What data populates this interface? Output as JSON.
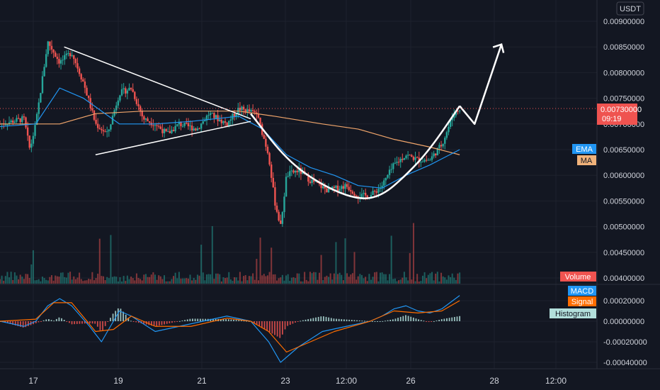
{
  "currency": "USDT",
  "last_price": {
    "value": "0.00730000",
    "countdown": "09:19",
    "color": "#ef5350"
  },
  "price_axis_ticks": [
    "0.00900000",
    "0.00850000",
    "0.00800000",
    "0.00750000",
    "0.00700000",
    "0.00650000",
    "0.00600000",
    "0.00550000",
    "0.00500000",
    "0.00450000",
    "0.00400000"
  ],
  "indicator_badges": {
    "ema": {
      "label": "EMA",
      "color": "#2196f3"
    },
    "ma": {
      "label": "MA",
      "color": "#f0a56b"
    },
    "volume": {
      "label": "Volume",
      "color": "#ef5350"
    }
  },
  "macd_badges": {
    "macd": {
      "label": "MACD",
      "color": "#2196f3"
    },
    "signal": {
      "label": "Signal",
      "color": "#ff6d00"
    },
    "histogram": {
      "label": "Histogram",
      "color": "#b2dfdb"
    }
  },
  "macd_axis_ticks": [
    "0.00020000",
    "0.00000000",
    "-0.00020000",
    "-0.00040000"
  ],
  "time_axis_ticks": [
    "17",
    "19",
    "21",
    "23",
    "12:00",
    "26",
    "28",
    "12:00"
  ],
  "chart_data": {
    "type": "candlestick",
    "x_axis": {
      "ticks": [
        "17",
        "19",
        "21",
        "23",
        "12:00",
        "26",
        "28",
        "12:00"
      ]
    },
    "y_axis": {
      "min": 0.004,
      "max": 0.009,
      "step": 0.0005
    },
    "macd_axis": {
      "min": -0.0004,
      "max": 0.0002,
      "step": 0.0002
    },
    "price_path": [
      [
        0,
        0.007
      ],
      [
        0.04,
        0.0071
      ],
      [
        0.05,
        0.0065
      ],
      [
        0.06,
        0.007
      ],
      [
        0.08,
        0.0086
      ],
      [
        0.1,
        0.0082
      ],
      [
        0.12,
        0.0084
      ],
      [
        0.14,
        0.0078
      ],
      [
        0.16,
        0.007
      ],
      [
        0.17,
        0.0069
      ],
      [
        0.18,
        0.0068
      ],
      [
        0.2,
        0.0076
      ],
      [
        0.22,
        0.0077
      ],
      [
        0.24,
        0.0071
      ],
      [
        0.26,
        0.007
      ],
      [
        0.28,
        0.0068
      ],
      [
        0.3,
        0.007
      ],
      [
        0.33,
        0.0069
      ],
      [
        0.35,
        0.0072
      ],
      [
        0.38,
        0.007
      ],
      [
        0.4,
        0.0073
      ],
      [
        0.43,
        0.0072
      ],
      [
        0.45,
        0.0064
      ],
      [
        0.46,
        0.0055
      ],
      [
        0.47,
        0.005
      ],
      [
        0.48,
        0.006
      ],
      [
        0.5,
        0.0061
      ],
      [
        0.52,
        0.0059
      ],
      [
        0.55,
        0.0057
      ],
      [
        0.58,
        0.0058
      ],
      [
        0.6,
        0.0056
      ],
      [
        0.62,
        0.0056
      ],
      [
        0.64,
        0.0058
      ],
      [
        0.66,
        0.0062
      ],
      [
        0.68,
        0.0064
      ],
      [
        0.7,
        0.0063
      ],
      [
        0.72,
        0.0063
      ],
      [
        0.74,
        0.0066
      ],
      [
        0.76,
        0.0072
      ],
      [
        0.77,
        0.0073
      ]
    ],
    "ema": [
      [
        0,
        0.00695
      ],
      [
        0.06,
        0.007
      ],
      [
        0.1,
        0.0077
      ],
      [
        0.14,
        0.0075
      ],
      [
        0.2,
        0.007
      ],
      [
        0.26,
        0.007
      ],
      [
        0.32,
        0.00705
      ],
      [
        0.4,
        0.00715
      ],
      [
        0.44,
        0.0069
      ],
      [
        0.48,
        0.0064
      ],
      [
        0.52,
        0.00615
      ],
      [
        0.56,
        0.006
      ],
      [
        0.6,
        0.0058
      ],
      [
        0.64,
        0.00575
      ],
      [
        0.68,
        0.006
      ],
      [
        0.72,
        0.0062
      ],
      [
        0.77,
        0.0065
      ]
    ],
    "ma": [
      [
        0,
        0.007
      ],
      [
        0.1,
        0.007
      ],
      [
        0.16,
        0.0072
      ],
      [
        0.24,
        0.00725
      ],
      [
        0.32,
        0.00725
      ],
      [
        0.4,
        0.00725
      ],
      [
        0.46,
        0.00715
      ],
      [
        0.54,
        0.007
      ],
      [
        0.6,
        0.0069
      ],
      [
        0.66,
        0.0067
      ],
      [
        0.72,
        0.00655
      ],
      [
        0.77,
        0.0064
      ]
    ],
    "macd": [
      [
        0,
        0.0
      ],
      [
        0.04,
        -5e-05
      ],
      [
        0.06,
        0.0
      ],
      [
        0.08,
        0.00015
      ],
      [
        0.1,
        0.00022
      ],
      [
        0.12,
        0.00015
      ],
      [
        0.15,
        -5e-05
      ],
      [
        0.17,
        -0.0002
      ],
      [
        0.2,
        0.0001
      ],
      [
        0.22,
        5e-05
      ],
      [
        0.26,
        -0.0001
      ],
      [
        0.3,
        -5e-05
      ],
      [
        0.34,
        0.0
      ],
      [
        0.38,
        5e-05
      ],
      [
        0.42,
        0.0
      ],
      [
        0.45,
        -0.0002
      ],
      [
        0.47,
        -0.0004
      ],
      [
        0.5,
        -0.00025
      ],
      [
        0.54,
        -0.0001
      ],
      [
        0.58,
        -5e-05
      ],
      [
        0.62,
        0.0
      ],
      [
        0.64,
        5e-05
      ],
      [
        0.66,
        0.00012
      ],
      [
        0.68,
        0.00015
      ],
      [
        0.7,
        0.0001
      ],
      [
        0.72,
        8e-05
      ],
      [
        0.74,
        0.00012
      ],
      [
        0.77,
        0.00025
      ]
    ],
    "signal": [
      [
        0,
        0.0
      ],
      [
        0.06,
        2e-05
      ],
      [
        0.09,
        0.00018
      ],
      [
        0.12,
        0.00018
      ],
      [
        0.16,
        -0.0001
      ],
      [
        0.19,
        -8e-05
      ],
      [
        0.22,
        5e-05
      ],
      [
        0.26,
        -5e-05
      ],
      [
        0.32,
        -5e-05
      ],
      [
        0.38,
        3e-05
      ],
      [
        0.42,
        0.0
      ],
      [
        0.45,
        -0.0001
      ],
      [
        0.48,
        -0.0003
      ],
      [
        0.52,
        -0.0002
      ],
      [
        0.56,
        -0.0001
      ],
      [
        0.62,
        0.0
      ],
      [
        0.66,
        0.0001
      ],
      [
        0.7,
        8e-05
      ],
      [
        0.74,
        0.0001
      ],
      [
        0.77,
        0.0002
      ]
    ],
    "annotations": {
      "triangle_upper": [
        [
          0.1075,
          0.0085
        ],
        [
          0.42,
          0.0071
        ]
      ],
      "triangle_lower": [
        [
          0.16,
          0.0064
        ],
        [
          0.42,
          0.00705
        ]
      ],
      "cup": [
        [
          0.42,
          0.0072
        ],
        [
          0.48,
          0.0063
        ],
        [
          0.54,
          0.0058
        ],
        [
          0.6,
          0.00552
        ],
        [
          0.64,
          0.0056
        ],
        [
          0.68,
          0.006
        ],
        [
          0.72,
          0.0065
        ],
        [
          0.77,
          0.00735
        ]
      ],
      "arrow": [
        [
          0.77,
          0.00735
        ],
        [
          0.795,
          0.007
        ],
        [
          0.84,
          0.00855
        ]
      ]
    }
  }
}
